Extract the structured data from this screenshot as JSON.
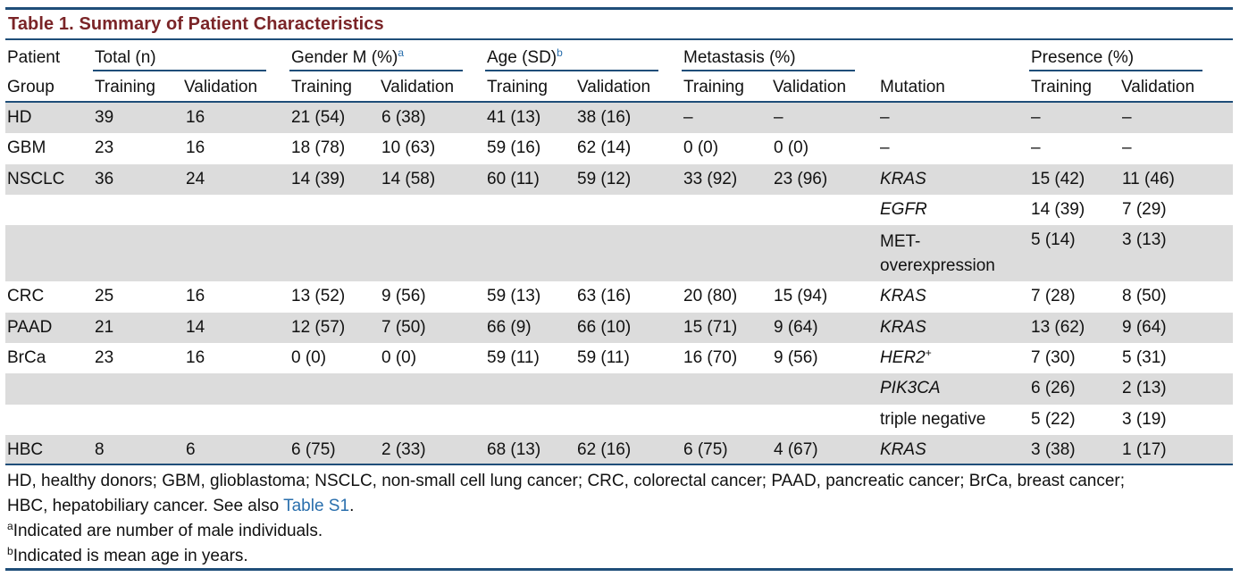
{
  "table": {
    "title": "Table 1.  Summary of Patient Characteristics",
    "group_headers": {
      "patient": "Patient",
      "total": "Total (n)",
      "gender": "Gender M (%)",
      "gender_sup": "a",
      "age": "Age (SD)",
      "age_sup": "b",
      "metastasis": "Metastasis (%)",
      "presence": "Presence (%)"
    },
    "sub_headers": {
      "group": "Group",
      "total_training": "Training",
      "total_validation": "Validation",
      "gender_training": "Training",
      "gender_validation": "Validation",
      "age_training": "Training",
      "age_validation": "Validation",
      "met_training": "Training",
      "met_validation": "Validation",
      "mutation": "Mutation",
      "presence_training": "Training",
      "presence_validation": "Validation"
    },
    "rows": [
      {
        "group": "HD",
        "total_t": "39",
        "total_v": "16",
        "gender_t": "21 (54)",
        "gender_v": "6 (38)",
        "age_t": "41 (13)",
        "age_v": "38 (16)",
        "met_t": "–",
        "met_v": "–",
        "mutation": "–",
        "mutation_sup": "",
        "pres_t": "–",
        "pres_v": "–"
      },
      {
        "group": "GBM",
        "total_t": "23",
        "total_v": "16",
        "gender_t": "18 (78)",
        "gender_v": "10 (63)",
        "age_t": "59 (16)",
        "age_v": "62 (14)",
        "met_t": "0 (0)",
        "met_v": "0 (0)",
        "mutation": "–",
        "mutation_sup": "",
        "pres_t": "–",
        "pres_v": "–"
      },
      {
        "group": "NSCLC",
        "total_t": "36",
        "total_v": "24",
        "gender_t": "14 (39)",
        "gender_v": "14 (58)",
        "age_t": "60 (11)",
        "age_v": "59 (12)",
        "met_t": "33 (92)",
        "met_v": "23 (96)",
        "mutation": "KRAS",
        "mutation_sup": "",
        "pres_t": "15 (42)",
        "pres_v": "11 (46)"
      },
      {
        "group": "",
        "total_t": "",
        "total_v": "",
        "gender_t": "",
        "gender_v": "",
        "age_t": "",
        "age_v": "",
        "met_t": "",
        "met_v": "",
        "mutation": "EGFR",
        "mutation_sup": "",
        "pres_t": "14 (39)",
        "pres_v": "7 (29)"
      },
      {
        "group": "",
        "total_t": "",
        "total_v": "",
        "gender_t": "",
        "gender_v": "",
        "age_t": "",
        "age_v": "",
        "met_t": "",
        "met_v": "",
        "mutation": "MET-overexpression",
        "mutation_sup": "",
        "pres_t": "5 (14)",
        "pres_v": "3 (13)"
      },
      {
        "group": "CRC",
        "total_t": "25",
        "total_v": "16",
        "gender_t": "13 (52)",
        "gender_v": "9 (56)",
        "age_t": "59 (13)",
        "age_v": "63 (16)",
        "met_t": "20 (80)",
        "met_v": "15 (94)",
        "mutation": "KRAS",
        "mutation_sup": "",
        "pres_t": "7 (28)",
        "pres_v": "8 (50)"
      },
      {
        "group": "PAAD",
        "total_t": "21",
        "total_v": "14",
        "gender_t": "12 (57)",
        "gender_v": "7 (50)",
        "age_t": "66 (9)",
        "age_v": "66 (10)",
        "met_t": "15 (71)",
        "met_v": "9 (64)",
        "mutation": "KRAS",
        "mutation_sup": "",
        "pres_t": "13 (62)",
        "pres_v": "9 (64)"
      },
      {
        "group": "BrCa",
        "total_t": "23",
        "total_v": "16",
        "gender_t": "0 (0)",
        "gender_v": "0 (0)",
        "age_t": "59 (11)",
        "age_v": "59 (11)",
        "met_t": "16 (70)",
        "met_v": "9 (56)",
        "mutation": "HER2",
        "mutation_sup": "+",
        "pres_t": "7 (30)",
        "pres_v": "5 (31)"
      },
      {
        "group": "",
        "total_t": "",
        "total_v": "",
        "gender_t": "",
        "gender_v": "",
        "age_t": "",
        "age_v": "",
        "met_t": "",
        "met_v": "",
        "mutation": "PIK3CA",
        "mutation_sup": "",
        "pres_t": "6 (26)",
        "pres_v": "2 (13)"
      },
      {
        "group": "",
        "total_t": "",
        "total_v": "",
        "gender_t": "",
        "gender_v": "",
        "age_t": "",
        "age_v": "",
        "met_t": "",
        "met_v": "",
        "mutation": "triple negative",
        "mutation_sup": "",
        "pres_t": "5 (22)",
        "pres_v": "3 (19)"
      },
      {
        "group": "HBC",
        "total_t": "8",
        "total_v": "6",
        "gender_t": "6 (75)",
        "gender_v": "2 (33)",
        "age_t": "68 (13)",
        "age_v": "62 (16)",
        "met_t": "6 (75)",
        "met_v": "4 (67)",
        "mutation": "KRAS",
        "mutation_sup": "",
        "pres_t": "3 (38)",
        "pres_v": "1 (17)"
      }
    ],
    "footnotes": {
      "line1": "HD, healthy donors; GBM, glioblastoma; NSCLC, non-small cell lung cancer; CRC, colorectal cancer; PAAD, pancreatic cancer; BrCa, breast cancer;",
      "line2_prefix": "HBC, hepatobiliary cancer. See also ",
      "line2_link": "Table S1",
      "line2_suffix": ".",
      "note_a_mark": "a",
      "note_a": "Indicated are number of male individuals.",
      "note_b_mark": "b",
      "note_b": "Indicated is mean age in years."
    },
    "colors": {
      "rule": "#1f4e79",
      "title": "#7a2427",
      "shade": "#dcdcdc",
      "link": "#2a6fad"
    }
  }
}
